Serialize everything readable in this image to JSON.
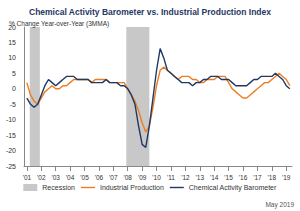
{
  "chart_data": {
    "type": "line",
    "title": "Chemical Activity Barometer vs. Industrial Production Index",
    "subtitle": "% Change Year-over-Year (3MMA)",
    "annotation": "May 2019",
    "x": [
      2001,
      2001.25,
      2001.5,
      2001.75,
      2002,
      2002.25,
      2002.5,
      2002.75,
      2003,
      2003.25,
      2003.5,
      2003.75,
      2004,
      2004.25,
      2004.5,
      2004.75,
      2005,
      2005.25,
      2005.5,
      2005.75,
      2006,
      2006.25,
      2006.5,
      2006.75,
      2007,
      2007.25,
      2007.5,
      2007.75,
      2008,
      2008.25,
      2008.5,
      2008.75,
      2009,
      2009.25,
      2009.5,
      2009.75,
      2010,
      2010.25,
      2010.5,
      2010.75,
      2011,
      2011.25,
      2011.5,
      2011.75,
      2012,
      2012.25,
      2012.5,
      2012.75,
      2013,
      2013.25,
      2013.5,
      2013.75,
      2014,
      2014.25,
      2014.5,
      2014.75,
      2015,
      2015.25,
      2015.5,
      2015.75,
      2016,
      2016.25,
      2016.5,
      2016.75,
      2017,
      2017.25,
      2017.5,
      2017.75,
      2018,
      2018.25,
      2018.5,
      2018.75,
      2019,
      2019.25
    ],
    "series": [
      {
        "name": "Recession",
        "type": "band",
        "color": "#c8c8c8",
        "ranges": [
          [
            2001.2,
            2001.9
          ],
          [
            2007.9,
            2009.5
          ]
        ]
      },
      {
        "name": "Industrial Production",
        "type": "line",
        "color": "#ee7d22",
        "values": [
          2,
          -2,
          -4,
          -5,
          -3,
          -1,
          0,
          1,
          0,
          0,
          1,
          1,
          2,
          3,
          3,
          3,
          3,
          3,
          2,
          3,
          3,
          3,
          3,
          2,
          2,
          2,
          2,
          2,
          0,
          -2,
          -4,
          -7,
          -11,
          -14,
          -12,
          -6,
          1,
          6,
          7,
          6,
          5,
          4,
          3,
          4,
          4,
          4,
          3,
          3,
          2,
          2,
          3,
          3,
          3,
          4,
          4,
          4,
          2,
          0,
          -1,
          -2,
          -3,
          -3,
          -2,
          -1,
          0,
          1,
          2,
          2,
          3,
          4,
          5,
          4,
          3,
          1
        ]
      },
      {
        "name": "Chemical Activity Barometer",
        "type": "line",
        "color": "#1f3864",
        "values": [
          -3,
          -5,
          -6,
          -5,
          -2,
          1,
          3,
          2,
          1,
          2,
          3,
          4,
          4,
          4,
          3,
          3,
          3,
          3,
          2,
          2,
          2,
          2,
          3,
          2,
          2,
          2,
          1,
          1,
          0,
          -2,
          -5,
          -12,
          -18,
          -19,
          -12,
          -3,
          6,
          13,
          10,
          6,
          5,
          4,
          3,
          2,
          2,
          2,
          1,
          2,
          2,
          3,
          3,
          4,
          4,
          4,
          3,
          3,
          3,
          2,
          1,
          1,
          1,
          1,
          2,
          3,
          3,
          4,
          4,
          4,
          4,
          5,
          4,
          3,
          1,
          0
        ]
      }
    ],
    "xlim": [
      2000.8,
      2019.4
    ],
    "xticks": [
      {
        "value": 2001,
        "label": "'01"
      },
      {
        "value": 2002,
        "label": "'02"
      },
      {
        "value": 2003,
        "label": "'03"
      },
      {
        "value": 2004,
        "label": "'04"
      },
      {
        "value": 2005,
        "label": "'05"
      },
      {
        "value": 2006,
        "label": "'06"
      },
      {
        "value": 2007,
        "label": "'07"
      },
      {
        "value": 2008,
        "label": "'08"
      },
      {
        "value": 2009,
        "label": "'09"
      },
      {
        "value": 2010,
        "label": "'10"
      },
      {
        "value": 2011,
        "label": "'11"
      },
      {
        "value": 2012,
        "label": "'12"
      },
      {
        "value": 2013,
        "label": "'13"
      },
      {
        "value": 2014,
        "label": "'14"
      },
      {
        "value": 2015,
        "label": "'15"
      },
      {
        "value": 2016,
        "label": "'16"
      },
      {
        "value": 2017,
        "label": "'17"
      },
      {
        "value": 2018,
        "label": "'18"
      },
      {
        "value": 2019,
        "label": "'19"
      }
    ],
    "ylim": [
      -25,
      20
    ],
    "yticks": [
      -25,
      -20,
      -15,
      -10,
      -5,
      0,
      5,
      10,
      15,
      20
    ],
    "grid": false,
    "legend": "bottom"
  }
}
